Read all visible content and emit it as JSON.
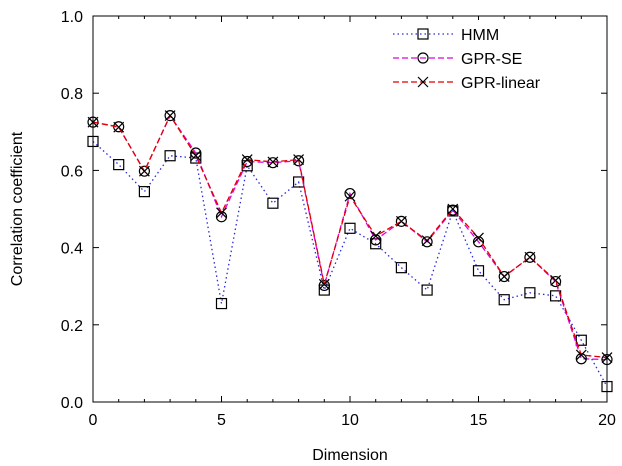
{
  "chart_data": {
    "type": "line",
    "xlabel": "Dimension",
    "ylabel": "Correlation coefficient",
    "xlim": [
      0,
      20
    ],
    "ylim": [
      0,
      1
    ],
    "xticks": [
      "0",
      "5",
      "10",
      "15",
      "20"
    ],
    "yticks": [
      "0.0",
      "0.2",
      "0.4",
      "0.6",
      "0.8",
      "1.0"
    ],
    "grid": false,
    "legend_position": "top-right",
    "x": [
      0,
      1,
      2,
      3,
      4,
      5,
      6,
      7,
      8,
      9,
      10,
      11,
      12,
      13,
      14,
      15,
      16,
      17,
      18,
      19,
      20
    ],
    "series": [
      {
        "name": "HMM",
        "color": "#2b2bd6",
        "line_style": "dotted",
        "marker": "square",
        "values": [
          0.675,
          0.615,
          0.545,
          0.638,
          0.632,
          0.255,
          0.612,
          0.515,
          0.57,
          0.29,
          0.45,
          0.41,
          0.348,
          0.29,
          0.495,
          0.34,
          0.265,
          0.283,
          0.275,
          0.16,
          0.04
        ]
      },
      {
        "name": "GPR-SE",
        "color": "#e000e0",
        "line_style": "dashed",
        "marker": "circle",
        "values": [
          0.725,
          0.713,
          0.598,
          0.742,
          0.645,
          0.48,
          0.623,
          0.62,
          0.625,
          0.302,
          0.54,
          0.42,
          0.468,
          0.415,
          0.497,
          0.415,
          0.325,
          0.375,
          0.312,
          0.112,
          0.11
        ]
      },
      {
        "name": "GPR-linear",
        "color": "#e00000",
        "line_style": "dashed",
        "marker": "cross",
        "values": [
          0.725,
          0.712,
          0.598,
          0.742,
          0.638,
          0.49,
          0.628,
          0.622,
          0.628,
          0.305,
          0.533,
          0.43,
          0.468,
          0.418,
          0.5,
          0.425,
          0.325,
          0.375,
          0.315,
          0.122,
          0.115
        ]
      }
    ]
  }
}
